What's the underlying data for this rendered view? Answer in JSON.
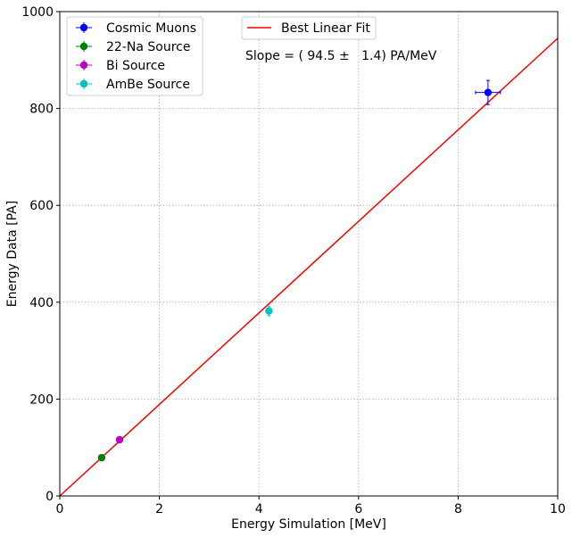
{
  "chart_data": {
    "type": "scatter",
    "xlabel": "Energy Simulation [MeV]",
    "ylabel": "Energy Data [PA]",
    "xlim": [
      0,
      10
    ],
    "ylim": [
      0,
      1000
    ],
    "x_ticks": [
      0,
      2,
      4,
      6,
      8,
      10
    ],
    "y_ticks": [
      0,
      200,
      400,
      600,
      800,
      1000
    ],
    "x_tick_labels": [
      "0",
      "2",
      "4",
      "6",
      "8",
      "10"
    ],
    "y_tick_labels": [
      "0",
      "200",
      "400",
      "600",
      "800",
      "1000"
    ],
    "grid": true,
    "series": [
      {
        "name": "Cosmic Muons",
        "color": "#0000ff",
        "points": [
          {
            "x": 8.6,
            "y": 833,
            "xerr": 0.25,
            "yerr": 25
          }
        ]
      },
      {
        "name": "22-Na Source",
        "color": "#008000",
        "points": [
          {
            "x": 0.84,
            "y": 79,
            "xerr": 0.02,
            "yerr": 3
          }
        ]
      },
      {
        "name": "Bi Source",
        "color": "#bf00bf",
        "points": [
          {
            "x": 1.2,
            "y": 116,
            "xerr": 0.02,
            "yerr": 3
          }
        ]
      },
      {
        "name": "AmBe Source",
        "color": "#00bfbf",
        "points": [
          {
            "x": 4.2,
            "y": 382,
            "xerr": 0.05,
            "yerr": 10
          }
        ]
      }
    ],
    "fit": {
      "name": "Best Linear Fit",
      "color": "#ff0000",
      "slope": 94.5,
      "intercept": 0,
      "annotation": "Slope = ( 94.5 ±   1.4) PA/MeV"
    },
    "legend_placement": "top-left"
  }
}
